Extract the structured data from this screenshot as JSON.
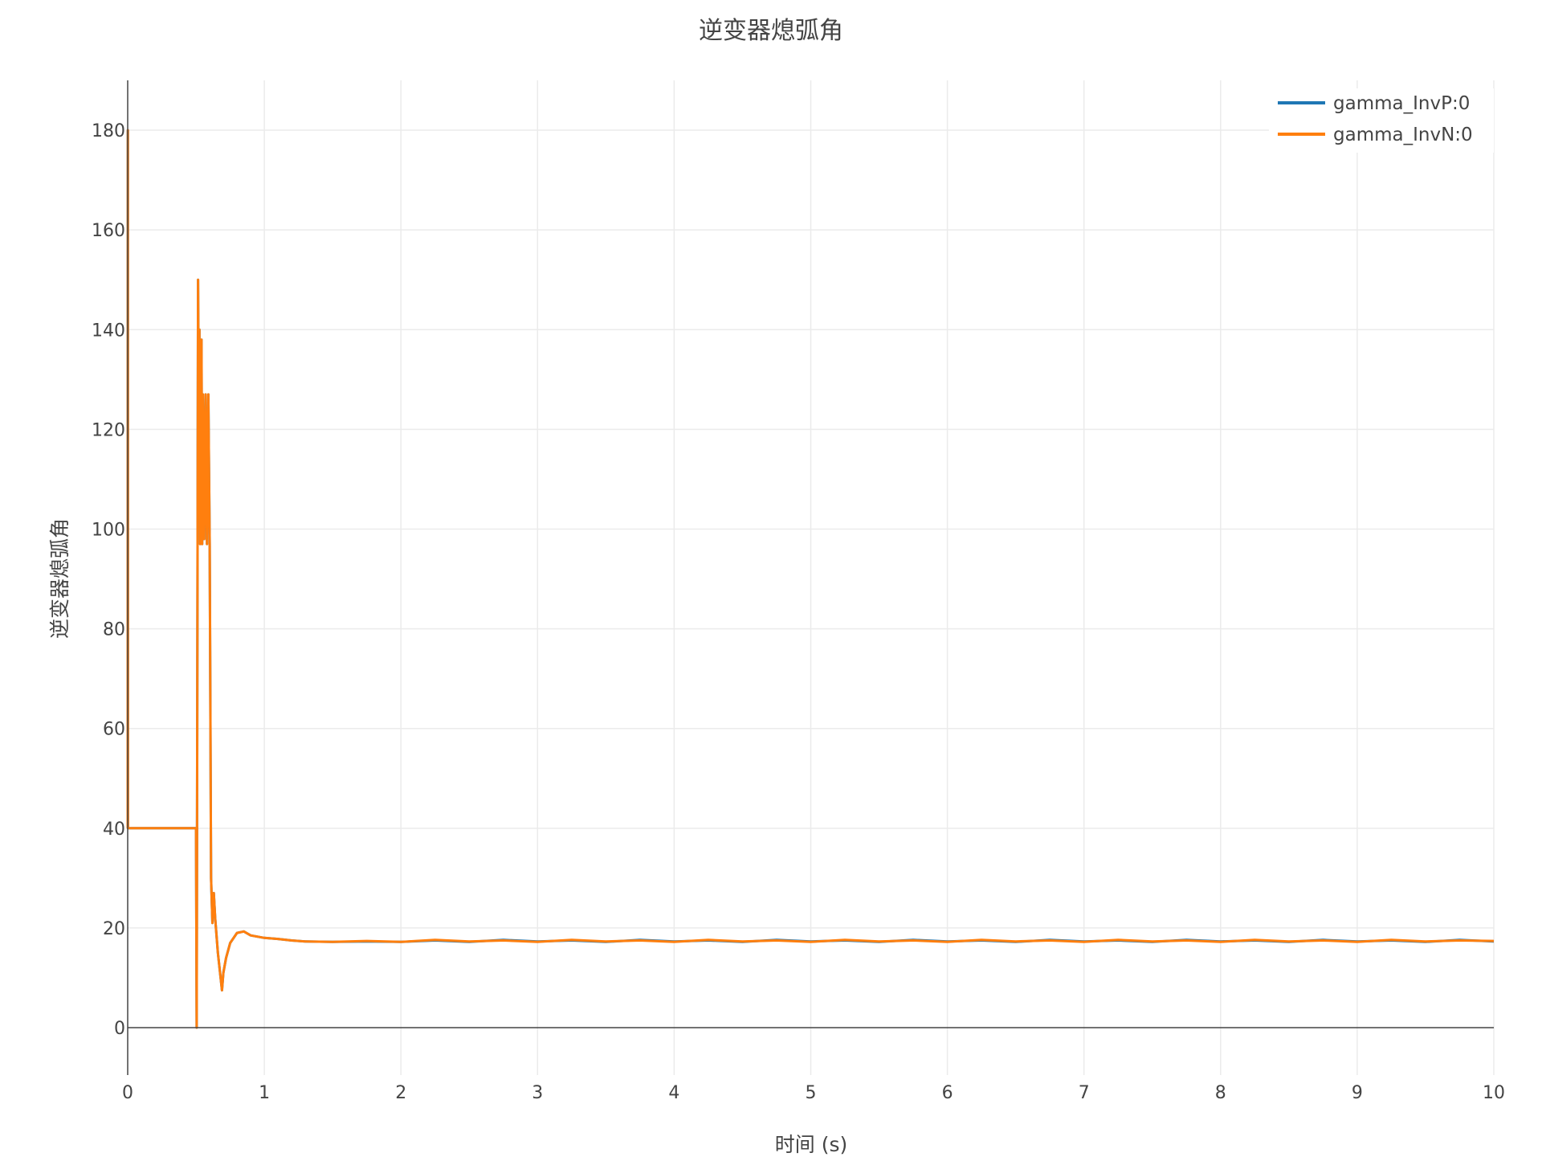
{
  "chart_data": {
    "type": "line",
    "title": "逆变器熄弧角",
    "xlabel": "时间 (s)",
    "ylabel": "逆变器熄弧角",
    "xlim": [
      0,
      10
    ],
    "ylim": [
      -9.5,
      190
    ],
    "xticks": [
      "0",
      "1",
      "2",
      "3",
      "4",
      "5",
      "6",
      "7",
      "8",
      "9",
      "10"
    ],
    "yticks": [
      "0",
      "20",
      "40",
      "60",
      "80",
      "100",
      "120",
      "140",
      "160",
      "180"
    ],
    "grid": true,
    "legend_position": "top-right",
    "series": [
      {
        "name": "gamma_InvP:0",
        "color": "#1f77b4",
        "x": [
          0,
          0.001,
          0.002,
          0.5,
          0.505,
          0.515,
          0.52,
          0.525,
          0.53,
          0.54,
          0.545,
          0.55,
          0.56,
          0.57,
          0.58,
          0.59,
          0.6,
          0.61,
          0.62,
          0.63,
          0.64,
          0.66,
          0.69,
          0.7,
          0.72,
          0.75,
          0.8,
          0.85,
          0.9,
          1.0,
          1.1,
          1.2,
          1.3,
          1.5,
          1.75,
          2,
          2.25,
          2.5,
          2.75,
          3,
          3.25,
          3.5,
          3.75,
          4,
          4.25,
          4.5,
          4.75,
          5,
          5.25,
          5.5,
          5.75,
          6,
          6.25,
          6.5,
          6.75,
          7,
          7.25,
          7.5,
          7.75,
          8,
          8.25,
          8.5,
          8.75,
          9,
          9.25,
          9.5,
          9.75,
          10
        ],
        "y": [
          40,
          180,
          40,
          40,
          0,
          150,
          120,
          140,
          97,
          138,
          97,
          127,
          98,
          127,
          97,
          127,
          97,
          30,
          21,
          27,
          22,
          15,
          7.5,
          11,
          14,
          17,
          19,
          19.3,
          18.5,
          18,
          17.8,
          17.5,
          17.3,
          17.2,
          17.3,
          17.2,
          17.5,
          17.2,
          17.6,
          17.3,
          17.5,
          17.2,
          17.6,
          17.3,
          17.5,
          17.2,
          17.6,
          17.3,
          17.5,
          17.2,
          17.6,
          17.3,
          17.5,
          17.2,
          17.6,
          17.3,
          17.5,
          17.2,
          17.6,
          17.3,
          17.5,
          17.2,
          17.6,
          17.3,
          17.5,
          17.2,
          17.6,
          17.3
        ]
      },
      {
        "name": "gamma_InvN:0",
        "color": "#ff7f0e",
        "x": [
          0,
          0.001,
          0.002,
          0.5,
          0.505,
          0.515,
          0.52,
          0.525,
          0.53,
          0.54,
          0.545,
          0.55,
          0.56,
          0.57,
          0.58,
          0.59,
          0.6,
          0.61,
          0.62,
          0.63,
          0.64,
          0.66,
          0.69,
          0.7,
          0.72,
          0.75,
          0.8,
          0.85,
          0.9,
          1.0,
          1.1,
          1.2,
          1.3,
          1.5,
          1.75,
          2,
          2.25,
          2.5,
          2.75,
          3,
          3.25,
          3.5,
          3.75,
          4,
          4.25,
          4.5,
          4.75,
          5,
          5.25,
          5.5,
          5.75,
          6,
          6.25,
          6.5,
          6.75,
          7,
          7.25,
          7.5,
          7.75,
          8,
          8.25,
          8.5,
          8.75,
          9,
          9.25,
          9.5,
          9.75,
          10
        ],
        "y": [
          40,
          180,
          40,
          40,
          0,
          150,
          120,
          140,
          97,
          138,
          97,
          127,
          98,
          127,
          97,
          127,
          97,
          30,
          21,
          27,
          22,
          15,
          7.5,
          11,
          14,
          17,
          19,
          19.3,
          18.5,
          18,
          17.8,
          17.5,
          17.3,
          17.2,
          17.4,
          17.2,
          17.6,
          17.3,
          17.5,
          17.2,
          17.6,
          17.3,
          17.5,
          17.2,
          17.6,
          17.3,
          17.5,
          17.2,
          17.6,
          17.3,
          17.5,
          17.2,
          17.6,
          17.3,
          17.5,
          17.2,
          17.6,
          17.3,
          17.5,
          17.2,
          17.6,
          17.3,
          17.5,
          17.2,
          17.6,
          17.3,
          17.5,
          17.4
        ]
      }
    ]
  }
}
